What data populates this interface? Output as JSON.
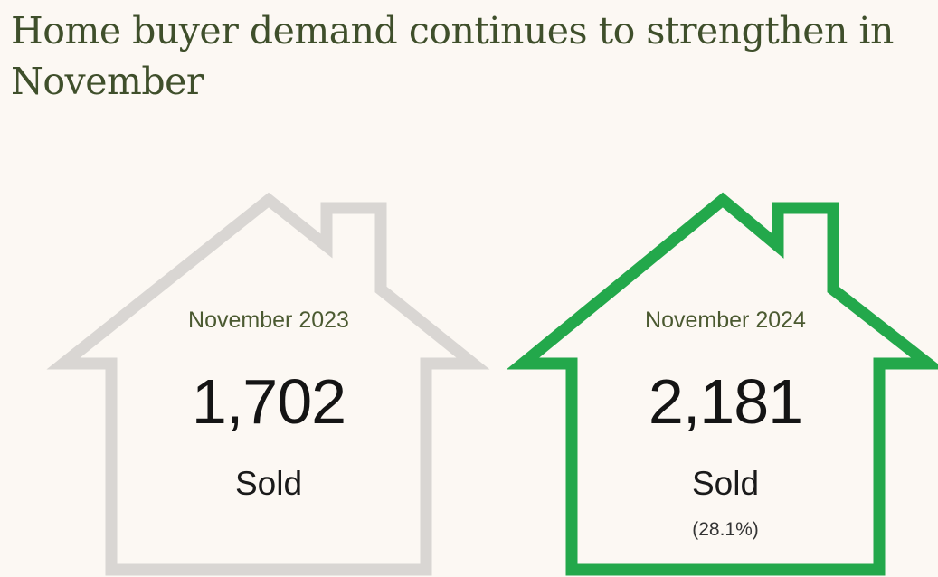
{
  "headline": "Home buyer demand continues to strengthen in November",
  "colors": {
    "background": "#fcf8f3",
    "headline": "#3f4f2b",
    "house_previous": "#d9d6d3",
    "house_current": "#23a84b"
  },
  "cards": [
    {
      "period": "November 2023",
      "value": "1,702",
      "unit": "Sold",
      "change": ""
    },
    {
      "period": "November 2024",
      "value": "2,181",
      "unit": "Sold",
      "change": "(28.1%)"
    }
  ]
}
